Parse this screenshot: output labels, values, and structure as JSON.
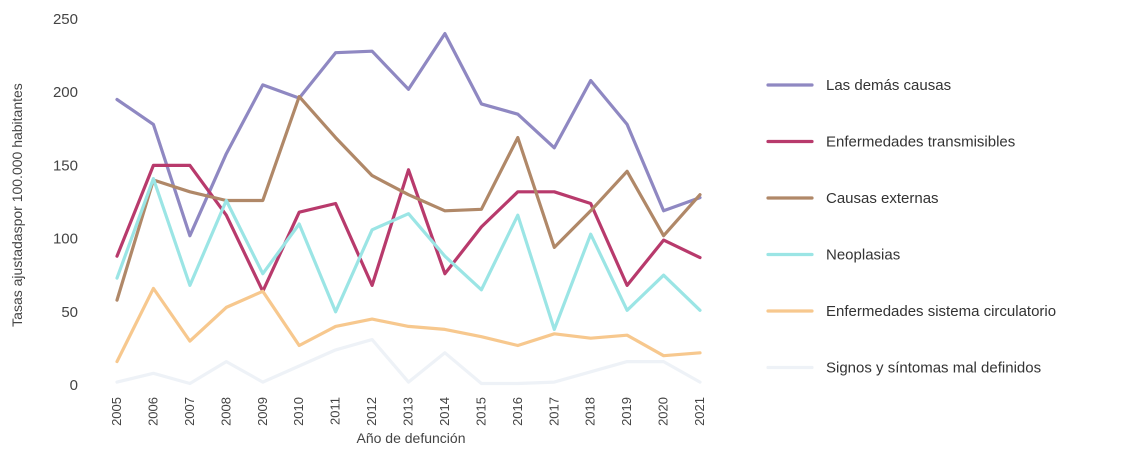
{
  "chart_data": {
    "type": "line",
    "title": "",
    "xlabel": "Año de defunción",
    "ylabel": "Tasas ajustadaspor 100.000 habitantes",
    "ylim": [
      0,
      250
    ],
    "yticks": [
      0,
      50,
      100,
      150,
      200,
      250
    ],
    "grid": false,
    "legend_position": "right",
    "categories": [
      "2005",
      "2006",
      "2007",
      "2008",
      "2009",
      "2010",
      "2011",
      "2012",
      "2013",
      "2014",
      "2015",
      "2016",
      "2017",
      "2018",
      "2019",
      "2020",
      "2021"
    ],
    "series": [
      {
        "name": "Las demás causas",
        "color": "#8f88c2",
        "values": [
          195,
          178,
          102,
          158,
          205,
          196,
          227,
          228,
          202,
          240,
          192,
          185,
          162,
          208,
          178,
          119,
          128
        ]
      },
      {
        "name": "Enfermedades transmisibles",
        "color": "#b83a6c",
        "values": [
          88,
          150,
          150,
          116,
          64,
          118,
          124,
          68,
          147,
          76,
          108,
          132,
          132,
          124,
          68,
          99,
          87
        ]
      },
      {
        "name": "Causas externas",
        "color": "#b08868",
        "values": [
          58,
          140,
          132,
          126,
          126,
          197,
          169,
          143,
          130,
          119,
          120,
          169,
          94,
          119,
          146,
          102,
          130
        ]
      },
      {
        "name": "Neoplasias",
        "color": "#9be5e5",
        "values": [
          73,
          141,
          68,
          126,
          76,
          110,
          50,
          106,
          117,
          88,
          65,
          116,
          38,
          103,
          51,
          75,
          51
        ]
      },
      {
        "name": "Enfermedades sistema circulatorio",
        "color": "#f7c88e",
        "values": [
          16,
          66,
          30,
          53,
          64,
          27,
          40,
          45,
          40,
          38,
          33,
          27,
          35,
          32,
          34,
          20,
          22
        ]
      },
      {
        "name": "Signos y síntomas mal definidos",
        "color": "#eef2f7",
        "values": [
          2,
          8,
          1,
          16,
          2,
          13,
          24,
          31,
          2,
          22,
          1,
          1,
          2,
          9,
          16,
          16,
          2
        ]
      }
    ]
  }
}
